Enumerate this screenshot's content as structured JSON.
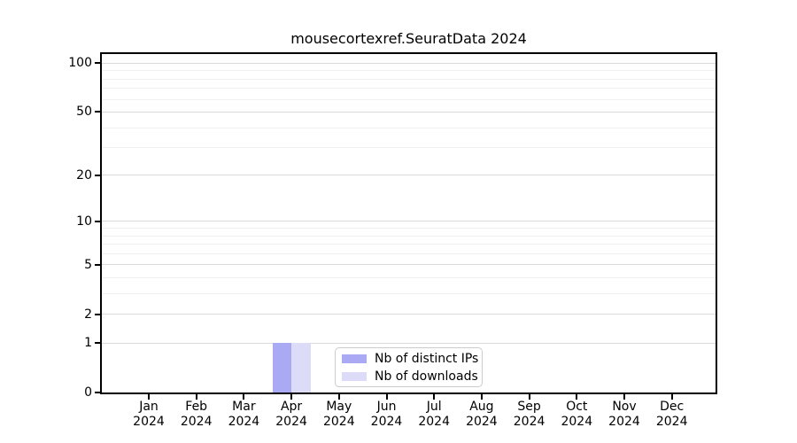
{
  "chart_data": {
    "type": "bar",
    "title": "mousecortexref.SeuratData 2024",
    "categories": [
      "Jan 2024",
      "Feb 2024",
      "Mar 2024",
      "Apr 2024",
      "May 2024",
      "Jun 2024",
      "Jul 2024",
      "Aug 2024",
      "Sep 2024",
      "Oct 2024",
      "Nov 2024",
      "Dec 2024"
    ],
    "series": [
      {
        "name": "Nb of distinct IPs",
        "color": "#aaaaf4",
        "values": [
          0,
          0,
          0,
          1,
          0,
          0,
          0,
          0,
          0,
          0,
          0,
          0
        ]
      },
      {
        "name": "Nb of downloads",
        "color": "#dcdcf9",
        "values": [
          0,
          0,
          0,
          1,
          0,
          0,
          0,
          0,
          0,
          0,
          0,
          0
        ]
      }
    ],
    "yscale": "log10(1+v)",
    "y_ticks": [
      0,
      1,
      2,
      5,
      10,
      20,
      50,
      100
    ],
    "y_minor_ticks": [
      3,
      4,
      6,
      7,
      8,
      9,
      30,
      40,
      60,
      70,
      80,
      90
    ],
    "ylim": [
      0,
      114
    ],
    "grid": "horizontal",
    "legend_position": "lower center"
  },
  "style": {
    "grid_major": "#d9d9d9",
    "grid_minor": "#f0f0f0",
    "axis_color": "#000000",
    "legend_border": "#cccccc",
    "background": "#ffffff"
  }
}
